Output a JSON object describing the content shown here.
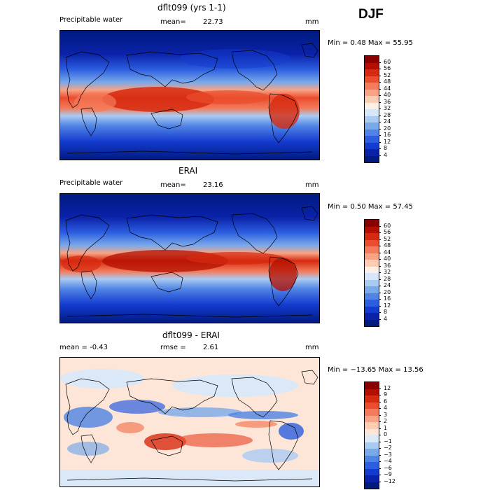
{
  "season": "DJF",
  "panels": [
    {
      "title": "dflt099 (yrs 1-1)",
      "left_label": "Precipitable water",
      "stat_label": "mean=",
      "stat_value": "22.73",
      "units": "mm",
      "minmax": "Min =    0.48 Max =   55.95",
      "colorbar_labels": [
        "60",
        "56",
        "52",
        "48",
        "44",
        "40",
        "36",
        "32",
        "28",
        "24",
        "20",
        "16",
        "12",
        "8",
        "4"
      ],
      "colors": [
        "#8a0000",
        "#b30f00",
        "#d62a10",
        "#ea4d2e",
        "#f37a5a",
        "#f8a384",
        "#fbcdb4",
        "#fdf0e6",
        "#d7e6f8",
        "#aacbf1",
        "#7aa9ea",
        "#4f83e4",
        "#2c5ee0",
        "#143bd0",
        "#0a22a8",
        "#001a80"
      ]
    },
    {
      "title": "ERAI",
      "left_label": "Precipitable water",
      "stat_label": "mean=",
      "stat_value": "23.16",
      "units": "mm",
      "minmax": "Min =    0.50 Max =   57.45",
      "colorbar_labels": [
        "60",
        "56",
        "52",
        "48",
        "44",
        "40",
        "36",
        "32",
        "28",
        "24",
        "20",
        "16",
        "12",
        "8",
        "4"
      ],
      "colors": [
        "#8a0000",
        "#b30f00",
        "#d62a10",
        "#ea4d2e",
        "#f37a5a",
        "#f8a384",
        "#fbcdb4",
        "#fdf0e6",
        "#d7e6f8",
        "#aacbf1",
        "#7aa9ea",
        "#4f83e4",
        "#2c5ee0",
        "#143bd0",
        "#0a22a8",
        "#001a80"
      ]
    },
    {
      "title": "dflt099 - ERAI",
      "left_label": "mean =    -0.43",
      "stat_label": "rmse =",
      "stat_value": "2.61",
      "units": "mm",
      "minmax": "Min = −13.65 Max =   13.56",
      "colorbar_labels": [
        "12",
        "9",
        "6",
        "4",
        "3",
        "2",
        "1",
        "0",
        "−1",
        "−2",
        "−3",
        "−4",
        "−6",
        "−9",
        "−12"
      ],
      "colors": [
        "#8a0000",
        "#b30f00",
        "#d62a10",
        "#ea4d2e",
        "#f37a5a",
        "#f8a384",
        "#fbcdb4",
        "#fde6d8",
        "#dbe8f8",
        "#aacbf1",
        "#7aa9ea",
        "#4f83e4",
        "#2c5ee0",
        "#143bd0",
        "#0a22a8",
        "#001a80"
      ]
    }
  ]
}
